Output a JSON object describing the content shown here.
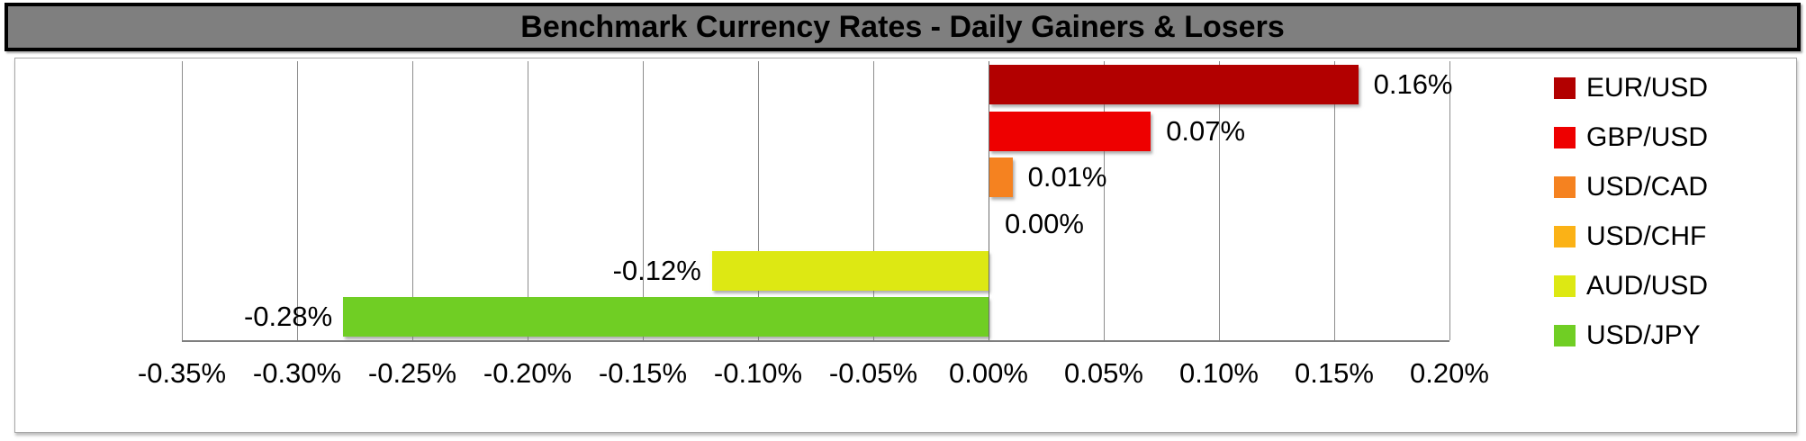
{
  "title": "Benchmark Currency Rates - Daily Gainers & Losers",
  "chart_data": {
    "type": "bar",
    "orientation": "horizontal",
    "title": "Benchmark Currency Rates - Daily Gainers & Losers",
    "categories": [
      "EUR/USD",
      "GBP/USD",
      "USD/CAD",
      "USD/CHF",
      "AUD/USD",
      "USD/JPY"
    ],
    "values": [
      0.16,
      0.07,
      0.01,
      0.0,
      -0.12,
      -0.28
    ],
    "value_labels": [
      "0.16%",
      "0.07%",
      "0.01%",
      "0.00%",
      "-0.12%",
      "-0.28%"
    ],
    "series_colors": [
      "#B20000",
      "#EE0000",
      "#F58220",
      "#FBB216",
      "#DDE813",
      "#70CE24"
    ],
    "xlabel": "",
    "ylabel": "",
    "xlim": [
      -0.35,
      0.2
    ],
    "x_tick_step": 0.05,
    "x_tick_labels": [
      "-0.35%",
      "-0.30%",
      "-0.25%",
      "-0.20%",
      "-0.15%",
      "-0.10%",
      "-0.05%",
      "0.00%",
      "0.05%",
      "0.10%",
      "0.15%",
      "0.20%"
    ],
    "grid": true,
    "legend_position": "right",
    "legend_entries": [
      "EUR/USD",
      "GBP/USD",
      "USD/CAD",
      "USD/CHF",
      "AUD/USD",
      "USD/JPY"
    ]
  },
  "colors": {
    "title_bg": "#7F7F7F",
    "title_text": "#000000",
    "title_border": "#000000",
    "chart_bg": "#FFFFFF",
    "chart_border": "#A6A6A6",
    "gridline": "#8C8C8C",
    "axis_line": "#6E6E6E",
    "label_text": "#000000"
  }
}
